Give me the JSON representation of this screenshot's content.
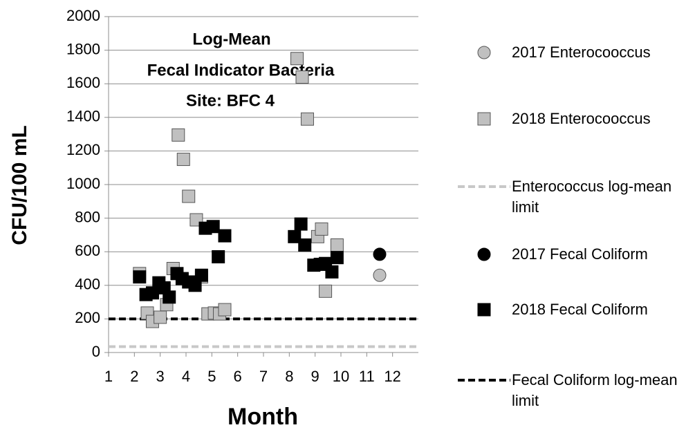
{
  "chart_data": {
    "type": "scatter",
    "title": [
      "Log-Mean",
      "Fecal Indicator Bacteria",
      "Site: BFC 4"
    ],
    "x_label": "Month",
    "y_label": "CFU/100 mL",
    "xlim": [
      1,
      13
    ],
    "xticks": [
      1,
      2,
      3,
      4,
      5,
      6,
      7,
      8,
      9,
      10,
      11,
      12
    ],
    "ylim": [
      0,
      2000
    ],
    "yticks": [
      0,
      200,
      400,
      600,
      800,
      1000,
      1200,
      1400,
      1600,
      1800,
      2000
    ],
    "grid": true,
    "legend": "right",
    "series": [
      {
        "name": "2017 Enterocooccus",
        "marker": "circle",
        "color": "#c0c0c0",
        "x": [
          11.5
        ],
        "values": [
          460
        ]
      },
      {
        "name": "2018 Enterocooccus",
        "marker": "square",
        "color": "#c0c0c0",
        "x": [
          2.2,
          2.5,
          2.7,
          3.0,
          3.25,
          3.5,
          3.7,
          3.9,
          4.1,
          4.4,
          4.6,
          4.85,
          5.1,
          5.3,
          5.5,
          8.3,
          8.5,
          8.7,
          9.1,
          9.25,
          9.4,
          9.85
        ],
        "values": [
          470,
          235,
          185,
          210,
          285,
          500,
          1295,
          1150,
          930,
          790,
          450,
          230,
          235,
          230,
          255,
          1750,
          1640,
          1390,
          690,
          735,
          365,
          640
        ]
      },
      {
        "name": "Enterococcus log-mean limit",
        "marker": "dashed-line",
        "color": "#c8c8c8",
        "value": 35
      },
      {
        "name": "2017 Fecal Coliform",
        "marker": "circle",
        "color": "#000000",
        "x": [
          11.5
        ],
        "values": [
          585
        ]
      },
      {
        "name": "2018 Fecal Coliform",
        "marker": "square",
        "color": "#000000",
        "x": [
          2.2,
          2.45,
          2.7,
          2.95,
          3.15,
          3.35,
          3.65,
          3.85,
          4.1,
          4.35,
          4.6,
          4.75,
          5.05,
          5.25,
          5.5,
          8.2,
          8.45,
          8.6,
          8.95,
          9.2,
          9.4,
          9.65,
          9.85
        ],
        "values": [
          450,
          345,
          355,
          415,
          385,
          330,
          470,
          440,
          420,
          400,
          460,
          740,
          750,
          570,
          695,
          690,
          765,
          640,
          520,
          525,
          530,
          480,
          565
        ]
      },
      {
        "name": "Fecal Coliform log-mean limit",
        "marker": "dashed-line",
        "color": "#000000",
        "value": 200
      }
    ]
  }
}
